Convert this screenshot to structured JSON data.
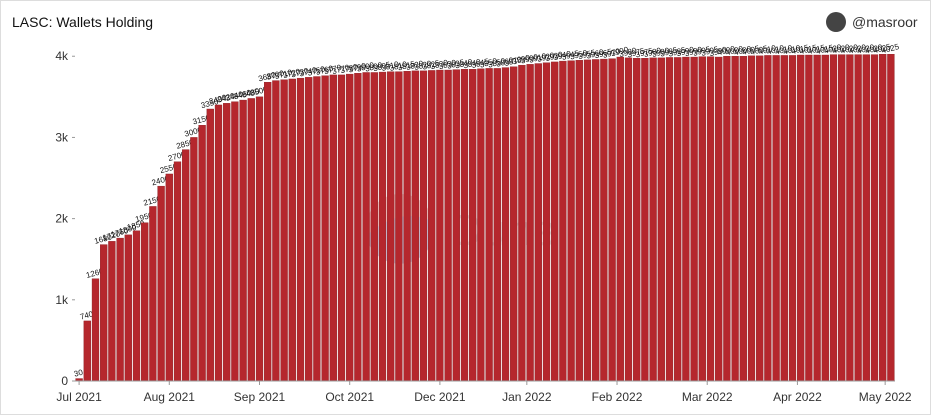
{
  "chart_data": {
    "type": "bar",
    "title": "LASC: Wallets Holding",
    "author": "@masroor",
    "values": [
      30,
      740,
      1260,
      1680,
      1720,
      1760,
      1800,
      1850,
      1950,
      2150,
      2400,
      2550,
      2700,
      2850,
      3000,
      3150,
      3350,
      3400,
      3420,
      3440,
      3460,
      3480,
      3500,
      3680,
      3700,
      3710,
      3720,
      3730,
      3740,
      3750,
      3760,
      3770,
      3770,
      3780,
      3790,
      3800,
      3800,
      3805,
      3810,
      3810,
      3815,
      3820,
      3820,
      3825,
      3830,
      3830,
      3835,
      3840,
      3840,
      3845,
      3850,
      3850,
      3860,
      3870,
      3890,
      3900,
      3910,
      3920,
      3930,
      3940,
      3945,
      3950,
      3955,
      3960,
      3965,
      3970,
      3990,
      3980,
      3975,
      3975,
      3980,
      3980,
      3985,
      3985,
      3990,
      3990,
      3995,
      3995,
      3990,
      4000,
      4000,
      4000,
      4005,
      4005,
      4010,
      4010,
      4010,
      4010,
      4015,
      4015,
      4015,
      4015,
      4020,
      4020,
      4020,
      4020,
      4020,
      4020,
      4025,
      4025
    ],
    "color": "#b5272d",
    "xlim": [
      0,
      100
    ],
    "xticks": [
      {
        "value": 0,
        "label": "Jul 2021"
      },
      {
        "value": 11,
        "label": "Aug 2021"
      },
      {
        "value": 22,
        "label": "Sep 2021"
      },
      {
        "value": 33,
        "label": "Oct 2021"
      },
      {
        "value": 44,
        "label": "Dec 2021"
      },
      {
        "value": 54.6,
        "label": "Jan 2022"
      },
      {
        "value": 65.6,
        "label": "Feb 2022"
      },
      {
        "value": 76.6,
        "label": "Mar 2022"
      },
      {
        "value": 87.6,
        "label": "Apr 2022"
      },
      {
        "value": 98.3,
        "label": "May 2022"
      }
    ],
    "ylim": [
      0,
      4200
    ],
    "yticks": [
      0,
      {
        "value": 1000,
        "label": "1k"
      },
      {
        "value": 2000,
        "label": "2k"
      },
      {
        "value": 3000,
        "label": "3k"
      },
      {
        "value": 4000,
        "label": "4k"
      }
    ],
    "grid": false
  }
}
